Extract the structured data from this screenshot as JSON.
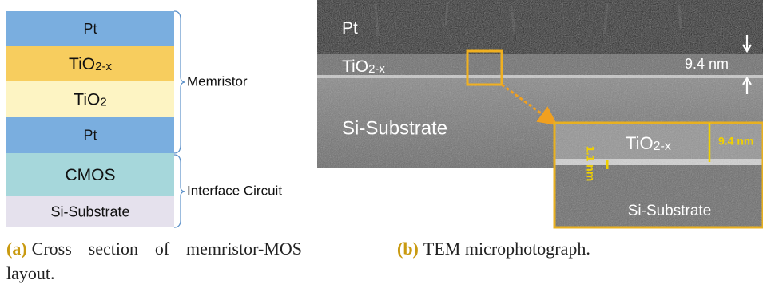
{
  "layers": [
    {
      "text": "Pt",
      "color": "#7aaedf"
    },
    {
      "text": "TiO",
      "sub": "2-x",
      "color": "#f7cd5e"
    },
    {
      "text": "TiO",
      "sub": "2",
      "color": "#fdf4c3"
    },
    {
      "text": "Pt",
      "color": "#7aaedf"
    },
    {
      "text": "CMOS",
      "color": "#a6d7db"
    },
    {
      "text": "Si-Substrate",
      "color": "#e5e1ed"
    }
  ],
  "groups": [
    "Memristor",
    "Interface Circuit"
  ],
  "tem": {
    "pt": "Pt",
    "oxide": {
      "text": "TiO",
      "sub": "2-x"
    },
    "thickness": "9.4 nm",
    "substrate": "Si-Substrate",
    "inset": {
      "oxide": {
        "text": "TiO",
        "sub": "2-x"
      },
      "thickness": "9.4 nm",
      "interface": "1.1 nm",
      "substrate": "Si-Substrate"
    }
  },
  "captions": [
    {
      "tag": "(a)",
      "text": "Cross section of memristor-MOS layout."
    },
    {
      "tag": "(b)",
      "text": "TEM microphotograph."
    }
  ]
}
